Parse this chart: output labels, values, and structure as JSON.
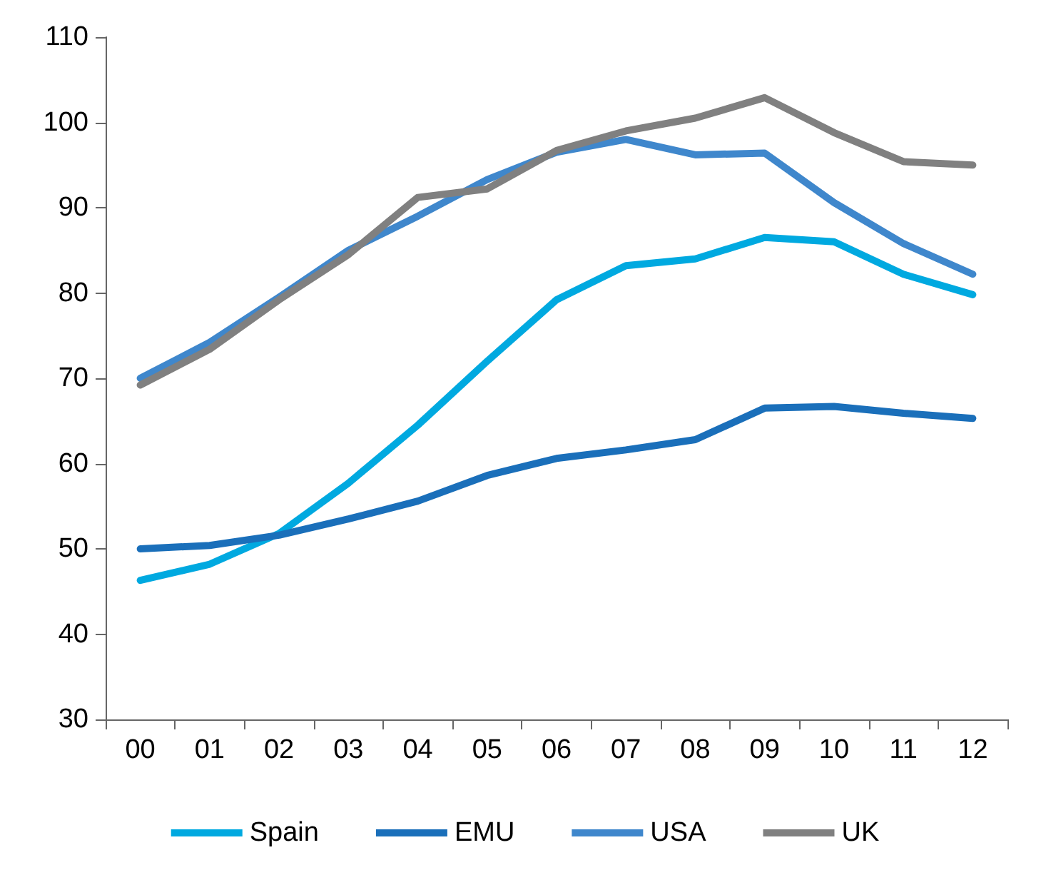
{
  "chart_data": {
    "type": "line",
    "categories": [
      "00",
      "01",
      "02",
      "03",
      "04",
      "05",
      "06",
      "07",
      "08",
      "09",
      "10",
      "11",
      "12"
    ],
    "series": [
      {
        "name": "Spain",
        "color": "#00a9e0",
        "values": [
          46.3,
          48.2,
          51.8,
          57.7,
          64.5,
          72,
          79.2,
          83.2,
          84,
          86.5,
          86,
          82.2,
          79.8
        ]
      },
      {
        "name": "EMU",
        "color": "#1a6fba",
        "values": [
          50,
          50.4,
          51.6,
          53.5,
          55.6,
          58.6,
          60.6,
          61.6,
          62.8,
          66.5,
          66.7,
          65.9,
          65.3
        ]
      },
      {
        "name": "USA",
        "color": "#3f87cc",
        "values": [
          70,
          74.2,
          79.5,
          85,
          89,
          93.3,
          96.5,
          98,
          96.2,
          96.4,
          90.6,
          85.8,
          82.2
        ]
      },
      {
        "name": "UK",
        "color": "#808080",
        "values": [
          69.2,
          73.4,
          79.2,
          84.5,
          91.2,
          92.2,
          96.7,
          99,
          100.5,
          102.9,
          98.8,
          95.4,
          95
        ]
      }
    ],
    "ylim": [
      30,
      110
    ],
    "yticks": [
      30,
      40,
      50,
      60,
      70,
      80,
      90,
      100,
      110
    ],
    "grid": false,
    "legend": "bottom",
    "marker": "none",
    "line_style": "solid"
  }
}
